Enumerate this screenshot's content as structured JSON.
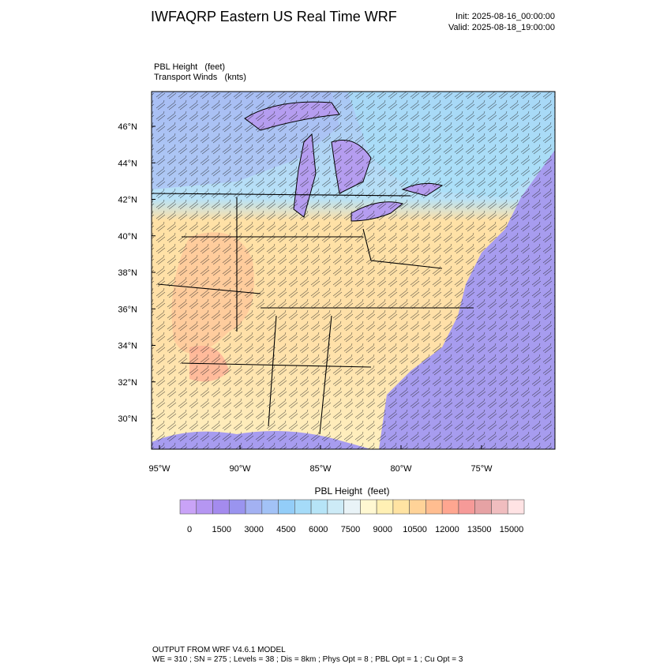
{
  "header": {
    "title": "IWFAQRP Eastern US Real Time WRF",
    "init": "Init: 2025-08-16_00:00:00",
    "valid": "Valid: 2025-08-18_19:00:00"
  },
  "fields": [
    "PBL Height   (feet)",
    "Transport Winds   (knts)"
  ],
  "map": {
    "lat_labels": [
      "46°N",
      "44°N",
      "42°N",
      "40°N",
      "38°N",
      "36°N",
      "34°N",
      "32°N",
      "30°N"
    ],
    "lon_labels": [
      "95°W",
      "90°W",
      "85°W",
      "80°W",
      "75°W"
    ]
  },
  "colorbar": {
    "title": "PBL Height  (feet)",
    "colors": [
      "#c9a3f7",
      "#b596f2",
      "#a48bee",
      "#9a94ef",
      "#a3b1f2",
      "#a2c2f6",
      "#93cdf8",
      "#a5dbf8",
      "#b6e4f7",
      "#cdebf7",
      "#e9f3f7",
      "#fff8d2",
      "#fff0b4",
      "#ffe3a2",
      "#ffd398",
      "#ffbd90",
      "#ffa690",
      "#f69a98",
      "#e6a2a4",
      "#f0bdbf",
      "#ffe3e4"
    ],
    "labels": [
      0,
      1500,
      3000,
      4500,
      6000,
      7500,
      9000,
      10500,
      12000,
      13500,
      15000
    ]
  },
  "footer": {
    "line1": "OUTPUT FROM WRF V4.6.1 MODEL",
    "line2": "WE = 310 ; SN = 275 ; Levels = 38 ; Dis = 8km ; Phys Opt = 8 ; PBL Opt = 1 ; Cu Opt = 3"
  }
}
